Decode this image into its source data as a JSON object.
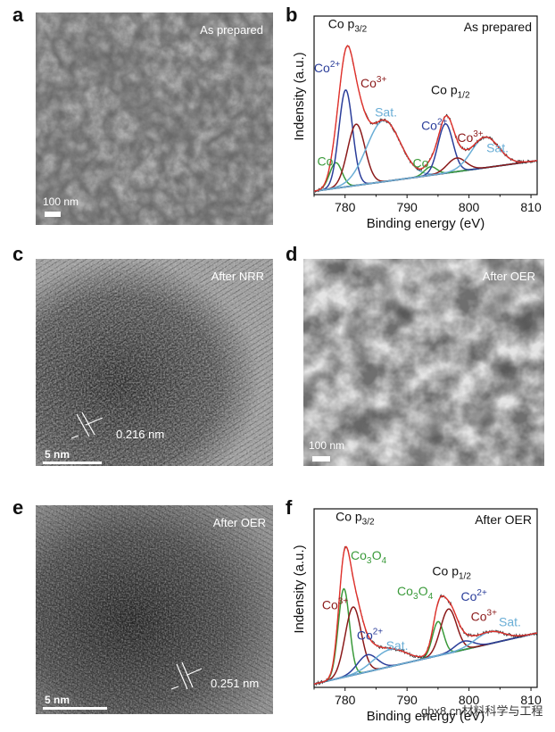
{
  "panels": [
    {
      "letter": "a",
      "label": "As prepared",
      "scale": "100 nm"
    },
    {
      "letter": "b"
    },
    {
      "letter": "c",
      "label": "After NRR",
      "scale": "5 nm",
      "d_spacing": "0.216 nm"
    },
    {
      "letter": "d",
      "label": "After OER",
      "scale": "100 nm"
    },
    {
      "letter": "e",
      "label": "After OER",
      "scale": "5 nm",
      "d_spacing": "0.251 nm"
    },
    {
      "letter": "f"
    }
  ],
  "watermark": "gbx8.cn材料科学与工程",
  "chart_data": [
    {
      "type": "line",
      "panel": "b",
      "title": "As prepared",
      "xlabel": "Binding energy (eV)",
      "ylabel": "Indensity (a.u.)",
      "xlim": [
        775,
        811
      ],
      "ylim": [
        0,
        1.05
      ],
      "xticks": [
        780,
        790,
        800,
        810
      ],
      "background": {
        "x0": 0.02,
        "x1": 0.2
      },
      "peaks": [
        {
          "name": "Co",
          "center": 778.5,
          "sigma": 1.0,
          "amp": 0.15,
          "color": "#3a9a3a"
        },
        {
          "name": "Co²⁺",
          "center": 780.1,
          "sigma": 1.1,
          "amp": 0.57,
          "color": "#2b3e9a"
        },
        {
          "name": "Co³⁺",
          "center": 781.8,
          "sigma": 1.4,
          "amp": 0.36,
          "color": "#8b1a1a"
        },
        {
          "name": "Sat.",
          "center": 786.2,
          "sigma": 2.7,
          "amp": 0.36,
          "color": "#6aaed6"
        },
        {
          "name": "Co",
          "center": 793.8,
          "sigma": 1.0,
          "amp": 0.05,
          "color": "#3a9a3a"
        },
        {
          "name": "Co²⁺",
          "center": 796.2,
          "sigma": 1.2,
          "amp": 0.29,
          "color": "#2b3e9a"
        },
        {
          "name": "Co³⁺",
          "center": 798.0,
          "sigma": 1.5,
          "amp": 0.08,
          "color": "#8b1a1a"
        },
        {
          "name": "Sat.",
          "center": 802.6,
          "sigma": 2.2,
          "amp": 0.18,
          "color": "#6aaed6"
        }
      ],
      "annotations": [
        {
          "text": "Co p",
          "sub": "3/2",
          "x": 780.4,
          "y": 0.98,
          "color": "#111",
          "anchor": "middle"
        },
        {
          "text": "Co",
          "sup": "2+",
          "x": 777.1,
          "y": 0.72,
          "color": "#2b3e9a",
          "anchor": "middle"
        },
        {
          "text": "Co",
          "sup": "3+",
          "x": 784.6,
          "y": 0.63,
          "color": "#8b1a1a",
          "anchor": "middle"
        },
        {
          "text": "Sat.",
          "x": 786.6,
          "y": 0.46,
          "color": "#6aaed6",
          "anchor": "middle"
        },
        {
          "text": "Co",
          "x": 776.8,
          "y": 0.17,
          "color": "#3a9a3a",
          "anchor": "middle"
        },
        {
          "text": "Co p",
          "sub": "1/2",
          "x": 797.0,
          "y": 0.59,
          "color": "#111",
          "anchor": "middle"
        },
        {
          "text": "Co",
          "sup": "2+",
          "x": 794.4,
          "y": 0.38,
          "color": "#2b3e9a",
          "anchor": "middle"
        },
        {
          "text": "Co",
          "sup": "3+",
          "x": 800.2,
          "y": 0.31,
          "color": "#8b1a1a",
          "anchor": "middle"
        },
        {
          "text": "Co",
          "x": 792.2,
          "y": 0.16,
          "color": "#3a9a3a",
          "anchor": "middle"
        },
        {
          "text": "Sat.",
          "x": 804.6,
          "y": 0.25,
          "color": "#6aaed6",
          "anchor": "middle"
        }
      ]
    },
    {
      "type": "line",
      "panel": "f",
      "title": "After OER",
      "xlabel": "Binding energy (eV)",
      "ylabel": "Indensity (a.u.)",
      "xlim": [
        775,
        811
      ],
      "ylim": [
        0,
        1.05
      ],
      "xticks": [
        780,
        790,
        800,
        810
      ],
      "background": {
        "x0": 0.02,
        "x1": 0.32
      },
      "peaks": [
        {
          "name": "Co₃O₄",
          "center": 779.8,
          "sigma": 0.9,
          "amp": 0.52,
          "color": "#3a9a3a"
        },
        {
          "name": "Co³⁺",
          "center": 781.3,
          "sigma": 1.3,
          "amp": 0.4,
          "color": "#8b1a1a"
        },
        {
          "name": "Co²⁺",
          "center": 783.6,
          "sigma": 1.6,
          "amp": 0.1,
          "color": "#2b3e9a"
        },
        {
          "name": "Sat.",
          "center": 787.2,
          "sigma": 2.6,
          "amp": 0.1,
          "color": "#6aaed6"
        },
        {
          "name": "Co₃O₄",
          "center": 795.0,
          "sigma": 0.9,
          "amp": 0.2,
          "color": "#3a9a3a"
        },
        {
          "name": "Co³⁺",
          "center": 796.7,
          "sigma": 1.3,
          "amp": 0.26,
          "color": "#8b1a1a"
        },
        {
          "name": "Co²⁺",
          "center": 799.2,
          "sigma": 1.5,
          "amp": 0.05,
          "color": "#2b3e9a"
        },
        {
          "name": "Sat.",
          "center": 803.3,
          "sigma": 2.3,
          "amp": 0.07,
          "color": "#6aaed6"
        }
      ],
      "annotations": [
        {
          "text": "Co p",
          "sub": "3/2",
          "x": 781.6,
          "y": 0.98,
          "color": "#111",
          "anchor": "middle"
        },
        {
          "text": "Co",
          "sub": "3",
          "text2": "O",
          "sub2": "4",
          "x": 780.9,
          "y": 0.75,
          "color": "#3a9a3a",
          "anchor": "start"
        },
        {
          "text": "Co",
          "sup": "3+",
          "x": 780.5,
          "y": 0.46,
          "color": "#8b1a1a",
          "anchor": "end"
        },
        {
          "text": "Co",
          "sup": "2+",
          "x": 784.0,
          "y": 0.28,
          "color": "#2b3e9a",
          "anchor": "middle"
        },
        {
          "text": "Sat.",
          "x": 788.4,
          "y": 0.22,
          "color": "#6aaed6",
          "anchor": "middle"
        },
        {
          "text": "Co",
          "sub": "3",
          "text2": "O",
          "sub2": "4",
          "x": 788.4,
          "y": 0.54,
          "color": "#3a9a3a",
          "anchor": "start"
        },
        {
          "text": "Co p",
          "sub": "1/2",
          "x": 797.2,
          "y": 0.66,
          "color": "#111",
          "anchor": "middle"
        },
        {
          "text": "Co",
          "sup": "2+",
          "x": 800.8,
          "y": 0.51,
          "color": "#2b3e9a",
          "anchor": "middle"
        },
        {
          "text": "Co",
          "sup": "3+",
          "x": 802.4,
          "y": 0.39,
          "color": "#8b1a1a",
          "anchor": "middle"
        },
        {
          "text": "Sat.",
          "x": 806.6,
          "y": 0.36,
          "color": "#6aaed6",
          "anchor": "middle"
        }
      ]
    }
  ]
}
